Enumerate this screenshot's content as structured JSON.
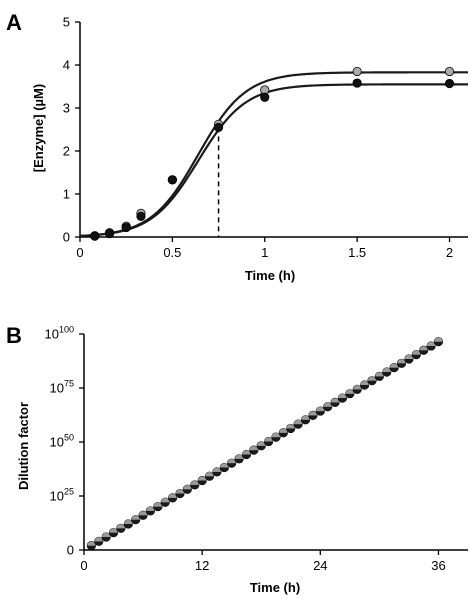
{
  "chart_data": [
    {
      "panel": "A",
      "type": "scatter",
      "xlabel": "Time (h)",
      "ylabel": "[Enzyme] (µM)",
      "xlim": [
        0,
        2.1
      ],
      "ylim": [
        0,
        5
      ],
      "x_ticks": [
        "0",
        "0.5",
        "1",
        "1.5",
        "2"
      ],
      "y_ticks": [
        "0",
        "1",
        "2",
        "3",
        "4",
        "5"
      ],
      "series": [
        {
          "color": "#aaaaaa",
          "points": [
            [
              0.08,
              0.03
            ],
            [
              0.16,
              0.1
            ],
            [
              0.25,
              0.25
            ],
            [
              0.33,
              0.55
            ],
            [
              0.5,
              1.33
            ],
            [
              0.75,
              2.62
            ],
            [
              1.0,
              3.42
            ],
            [
              1.5,
              3.85
            ],
            [
              2.0,
              3.85
            ]
          ],
          "fit_plateau": 3.83
        },
        {
          "color": "#111111",
          "points": [
            [
              0.08,
              0.02
            ],
            [
              0.16,
              0.08
            ],
            [
              0.25,
              0.22
            ],
            [
              0.33,
              0.48
            ],
            [
              0.5,
              1.33
            ],
            [
              0.75,
              2.55
            ],
            [
              1.0,
              3.25
            ],
            [
              1.5,
              3.58
            ],
            [
              2.0,
              3.57
            ]
          ],
          "fit_plateau": 3.55
        }
      ],
      "marker_line_x": 0.75
    },
    {
      "panel": "B",
      "type": "scatter",
      "xlabel": "Time (h)",
      "ylabel": "Dilution factor",
      "xlim": [
        0,
        39
      ],
      "y_exponent_lim": [
        0,
        100
      ],
      "x_ticks": [
        "0",
        "12",
        "24",
        "36"
      ],
      "y_ticks": [
        {
          "base": "0",
          "exp": ""
        },
        {
          "base": "10",
          "exp": "25"
        },
        {
          "base": "10",
          "exp": "50"
        },
        {
          "base": "10",
          "exp": "75"
        },
        {
          "base": "10",
          "exp": "100"
        }
      ],
      "series": [
        {
          "color": "#888888",
          "x_start": 0.75,
          "x_step": 0.75,
          "count": 48,
          "exp_per_hour": 2.68
        }
      ]
    }
  ]
}
